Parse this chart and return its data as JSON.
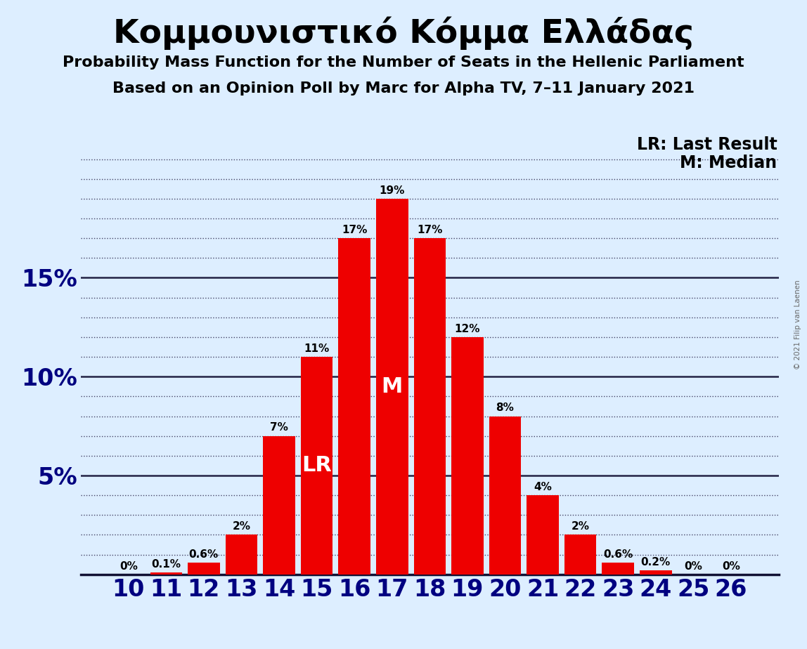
{
  "title": "Κομμουνιστικό Κόμμα Ελλάδας",
  "subtitle1": "Probability Mass Function for the Number of Seats in the Hellenic Parliament",
  "subtitle2": "Based on an Opinion Poll by Marc for Alpha TV, 7–11 January 2021",
  "copyright": "© 2021 Filip van Laenen",
  "categories": [
    10,
    11,
    12,
    13,
    14,
    15,
    16,
    17,
    18,
    19,
    20,
    21,
    22,
    23,
    24,
    25,
    26
  ],
  "values": [
    0.0,
    0.001,
    0.006,
    0.02,
    0.07,
    0.11,
    0.17,
    0.19,
    0.17,
    0.12,
    0.08,
    0.04,
    0.02,
    0.006,
    0.002,
    0.0,
    0.0
  ],
  "bar_labels": [
    "0%",
    "0.1%",
    "0.6%",
    "2%",
    "7%",
    "11%",
    "17%",
    "19%",
    "17%",
    "12%",
    "8%",
    "4%",
    "2%",
    "0.6%",
    "0.2%",
    "0%",
    "0%"
  ],
  "bar_color": "#ee0000",
  "background_color": "#ddeeff",
  "text_color": "#000080",
  "lr_seat": 15,
  "median_seat": 17,
  "lr_label": "LR",
  "median_label": "M",
  "legend_lr": "LR: Last Result",
  "legend_m": "M: Median",
  "yticks": [
    0.05,
    0.1,
    0.15
  ],
  "ytick_labels": [
    "5%",
    "10%",
    "15%"
  ],
  "ylim": [
    0,
    0.215
  ],
  "grid_minor_step": 0.01,
  "grid_major_vals": [
    0.05,
    0.1,
    0.15
  ]
}
